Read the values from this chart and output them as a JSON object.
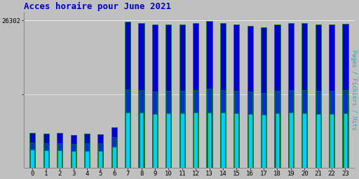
{
  "title": "Acces horaire pour June 2021",
  "ylabel_right": "Pages / Fichiers / Hits",
  "hours": [
    0,
    1,
    2,
    3,
    4,
    5,
    6,
    7,
    8,
    9,
    10,
    11,
    12,
    13,
    14,
    15,
    16,
    17,
    18,
    19,
    20,
    21,
    22,
    23
  ],
  "hits": [
    6200,
    6100,
    6200,
    5900,
    6100,
    6000,
    7200,
    26000,
    25800,
    25500,
    25500,
    25500,
    25800,
    26200,
    25800,
    25500,
    25300,
    25000,
    25500,
    25800,
    25800,
    25500,
    25500,
    25700
  ],
  "fichiers": [
    4500,
    4400,
    4400,
    4300,
    4400,
    4400,
    5500,
    14000,
    13800,
    13600,
    13700,
    13700,
    13900,
    14100,
    13900,
    13700,
    13600,
    13400,
    13700,
    13900,
    13900,
    13700,
    13700,
    13800
  ],
  "pages": [
    3200,
    3100,
    3100,
    3000,
    3000,
    3000,
    3700,
    9800,
    9800,
    9600,
    9700,
    9700,
    9800,
    9900,
    9800,
    9700,
    9600,
    9500,
    9700,
    9800,
    9700,
    9600,
    9600,
    9700
  ],
  "hits_color": "#0000cc",
  "fichiers_color": "#0033cc",
  "pages_color": "#00ccff",
  "edge_color": "#008800",
  "bg_plot": "#c0c0c0",
  "bg_fig": "#c0c0c0",
  "title_color": "#0000cc",
  "title_fontsize": 9,
  "ylabel_color": "#00bbdd",
  "ymax": 27800,
  "ymin": 0,
  "ytick_val": 26302,
  "ytick2_val": 13151
}
